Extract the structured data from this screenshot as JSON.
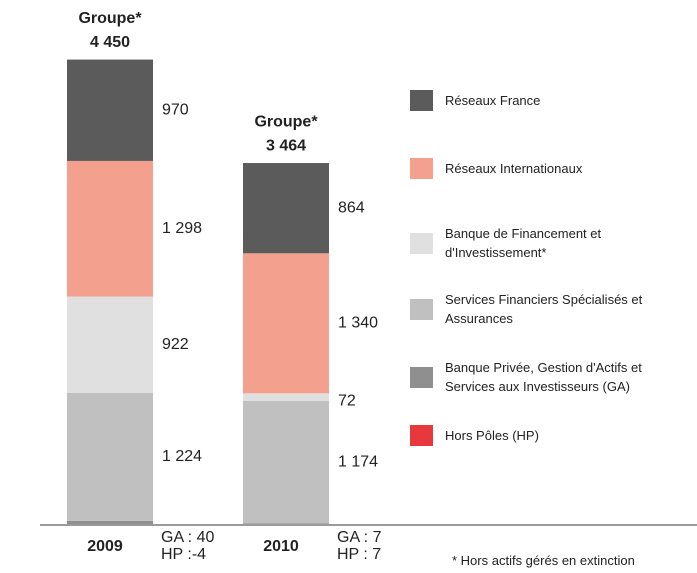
{
  "chart_data": {
    "type": "stacked_bar",
    "categories": [
      "2009",
      "2010"
    ],
    "total_title": "Groupe*",
    "totals": [
      4450,
      3464
    ],
    "total_labels": [
      "4 450",
      "3 464"
    ],
    "series": [
      {
        "name": "Réseaux France",
        "color": "#5b5b5b",
        "values": [
          970,
          864
        ],
        "value_labels": [
          "970",
          "864"
        ]
      },
      {
        "name": "Réseaux Internationaux",
        "color": "#f4a08f",
        "values": [
          1298,
          1340
        ],
        "value_labels": [
          "1 298",
          "1 340"
        ]
      },
      {
        "name": "Banque de Financement et d'Investissement*",
        "color": "#e0e0e0",
        "values": [
          922,
          72
        ],
        "value_labels": [
          "922",
          "72"
        ]
      },
      {
        "name": "Services Financiers Spécialisés et Assurances",
        "color": "#c0c0c0",
        "values": [
          1224,
          1174
        ],
        "value_labels": [
          "1 224",
          "1 174"
        ]
      },
      {
        "name": "Banque Privée, Gestion d'Actifs et Services aux Investisseurs (GA)",
        "color": "#8f8f8f",
        "values": [
          40,
          7
        ],
        "value_labels": [
          "GA : 40",
          "GA : 7"
        ]
      },
      {
        "name": "Hors Pôles (HP)",
        "color": "#e8383d",
        "values": [
          -4,
          7
        ],
        "value_labels": [
          "HP :-4",
          "HP : 7"
        ]
      }
    ],
    "ylim": [
      0,
      4500
    ],
    "footnote": "* Hors actifs gérés en extinction"
  }
}
